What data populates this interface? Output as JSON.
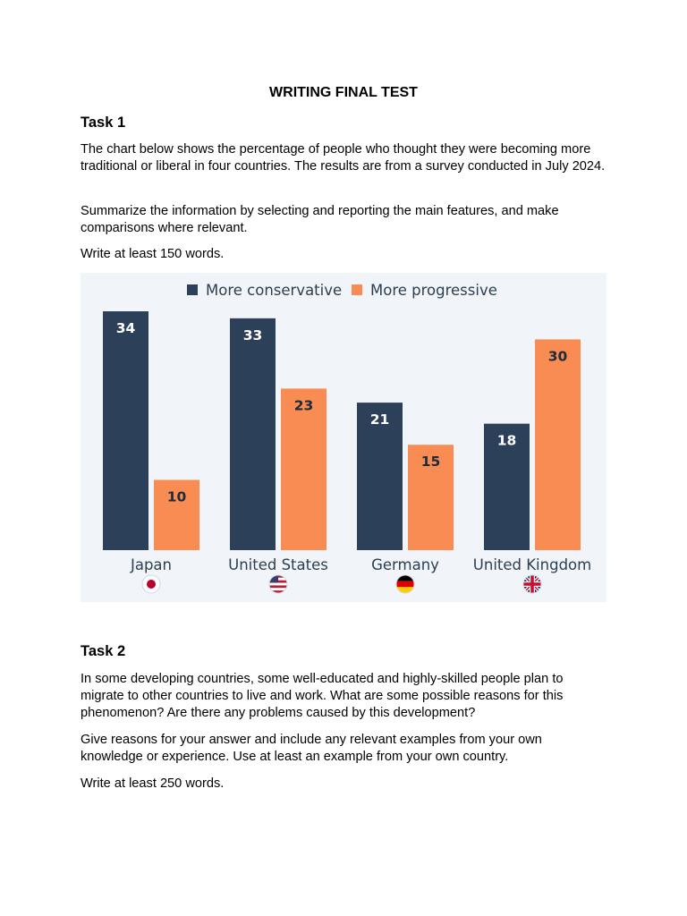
{
  "document": {
    "title": "WRITING FINAL TEST"
  },
  "task1": {
    "heading": "Task 1",
    "paragraphs": [
      "The chart below shows the percentage of people who thought they were becoming more traditional or liberal in four countries. The results are from a survey conducted in July 2024.",
      "Summarize the information by selecting and reporting the main features, and make comparisons where relevant.",
      "Write at least 150 words."
    ]
  },
  "chart_data": {
    "type": "bar",
    "categories": [
      "Japan",
      "United States",
      "Germany",
      "United Kingdom"
    ],
    "series": [
      {
        "name": "More conservative",
        "color": "#2c4059",
        "values": [
          34,
          33,
          21,
          18
        ]
      },
      {
        "name": "More progressive",
        "color": "#f98c52",
        "values": [
          10,
          23,
          15,
          30
        ]
      }
    ],
    "flags": [
      "japan-flag-icon",
      "usa-flag-icon",
      "germany-flag-icon",
      "uk-flag-icon"
    ],
    "ylim": [
      0,
      34
    ],
    "legend_position": "top",
    "grid": false
  },
  "task2": {
    "heading": "Task 2",
    "paragraphs": [
      "In some developing countries, some well-educated and highly-skilled people plan to migrate to other countries to live and work. What are some possible reasons for this phenomenon? Are there any problems caused by this development?",
      "Give reasons for your answer and include any relevant examples from your own knowledge or experience. Use at least an example from your own country.",
      "Write at least 250 words."
    ]
  }
}
